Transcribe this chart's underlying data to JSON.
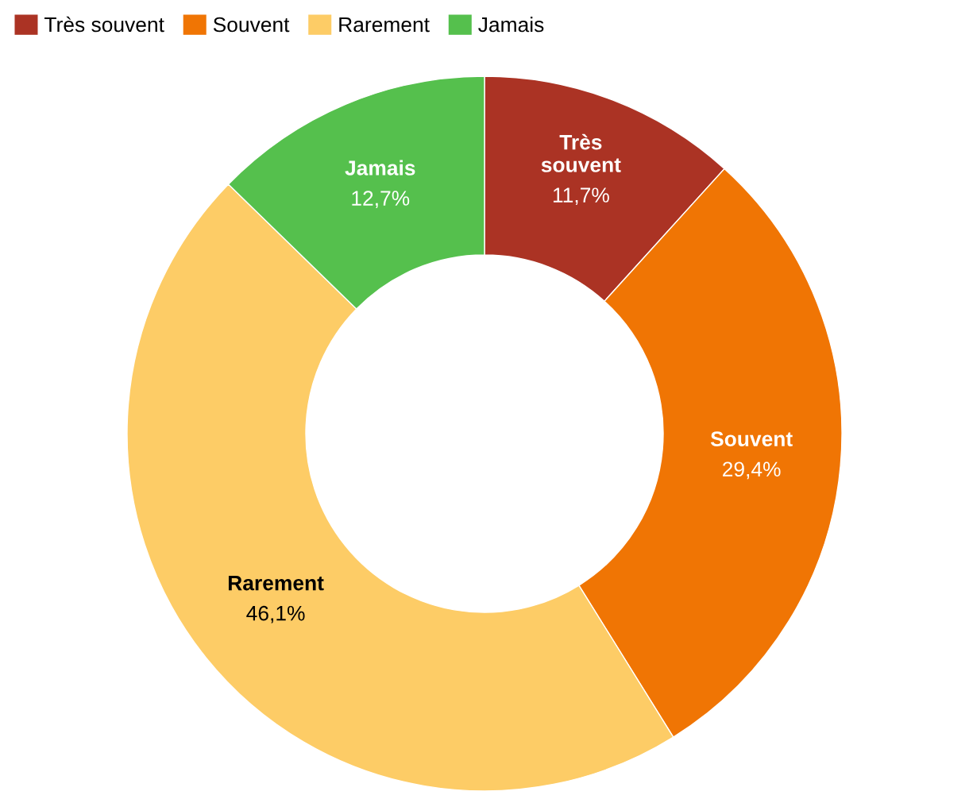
{
  "chart_data": {
    "type": "donut",
    "categories": [
      "Très souvent",
      "Souvent",
      "Rarement",
      "Jamais"
    ],
    "values": [
      11.7,
      29.4,
      46.1,
      12.7
    ],
    "value_labels": [
      "11,7%",
      "29,4%",
      "46,1%",
      "12,7%"
    ],
    "colors": [
      "#ab3324",
      "#f07504",
      "#fdcc66",
      "#55c04d"
    ],
    "legend": "top left"
  }
}
